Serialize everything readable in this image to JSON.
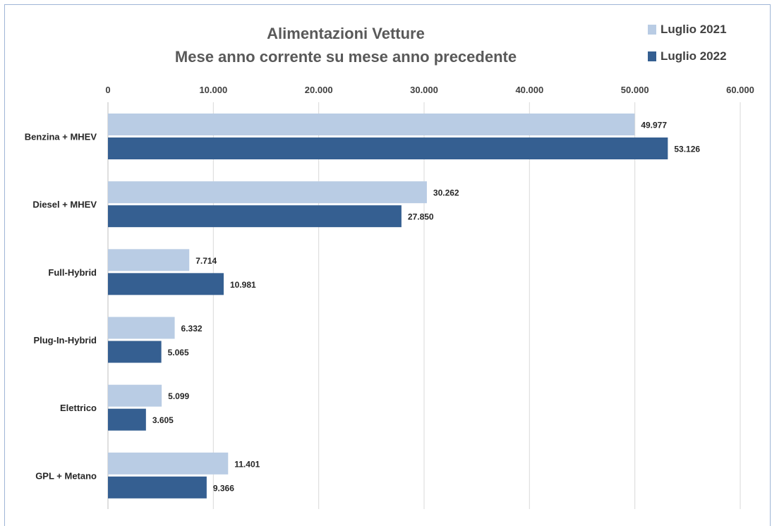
{
  "chart_data": {
    "type": "bar",
    "orientation": "horizontal",
    "title_line1": "Alimentazioni Vetture",
    "title_line2": "Mese anno corrente su mese anno precedente",
    "xlabel": "",
    "ylabel": "",
    "xlim": [
      0,
      60000
    ],
    "ticks": [
      0,
      10000,
      20000,
      30000,
      40000,
      50000,
      60000
    ],
    "tick_labels": [
      "0",
      "10.000",
      "20.000",
      "30.000",
      "40.000",
      "50.000",
      "60.000"
    ],
    "axis_position": "top",
    "grid": true,
    "legend_position": "top-right",
    "categories": [
      "Benzina + MHEV",
      "Diesel + MHEV",
      "Full-Hybrid",
      "Plug-In-Hybrid",
      "Elettrico",
      "GPL + Metano"
    ],
    "series": [
      {
        "name": "Luglio 2021",
        "color": "#b9cce4",
        "values": [
          49977,
          30262,
          7714,
          6332,
          5099,
          11401
        ],
        "value_labels": [
          "49.977",
          "30.262",
          "7.714",
          "6.332",
          "5.099",
          "11.401"
        ]
      },
      {
        "name": "Luglio 2022",
        "color": "#355f91",
        "values": [
          53126,
          27850,
          10981,
          5065,
          3605,
          9366
        ],
        "value_labels": [
          "53.126",
          "27.850",
          "10.981",
          "5.065",
          "3.605",
          "9.366"
        ]
      }
    ]
  }
}
